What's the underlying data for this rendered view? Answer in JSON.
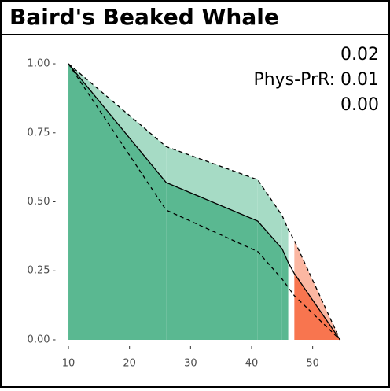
{
  "chart_data": {
    "type": "ribbon",
    "title": "Baird's Beaked Whale",
    "annotations": [
      "0.02",
      "Phys-PrR: 0.01",
      "0.00"
    ],
    "x": [
      10,
      26,
      41,
      45,
      46,
      47,
      54.5
    ],
    "series": [
      {
        "color": "#000000",
        "dash": true,
        "values": [
          1,
          0.7,
          0.58,
          0.45,
          0.4,
          0.36,
          0
        ]
      },
      {
        "color": "#000000",
        "dash": false,
        "values": [
          1,
          0.57,
          0.43,
          0.33,
          0.28,
          0.24,
          0
        ]
      },
      {
        "color": "#000000",
        "dash": true,
        "values": [
          1,
          0.47,
          0.32,
          0.22,
          0.19,
          0.16,
          0
        ]
      }
    ],
    "segment_colors": [
      [
        "#5ab891",
        "#a6dbc5"
      ],
      [
        "#5ab891",
        "#a6dbc5"
      ],
      [
        "#5ab891",
        "#a6dbc5"
      ],
      [
        "#5ab891",
        "#a6dbc5"
      ],
      null,
      [
        "#f8754f",
        "#fbb7a2"
      ]
    ],
    "xlim": [
      8,
      57
    ],
    "ylim": [
      -0.02,
      1.05
    ],
    "xticks": [
      10,
      20,
      30,
      40,
      50
    ],
    "yticks": [
      {
        "value": 0,
        "label": "0.00"
      },
      0.25,
      {
        "value": 0.5,
        "label": "0.50"
      },
      0.75,
      {
        "value": 1,
        "label": "1.00"
      }
    ]
  }
}
